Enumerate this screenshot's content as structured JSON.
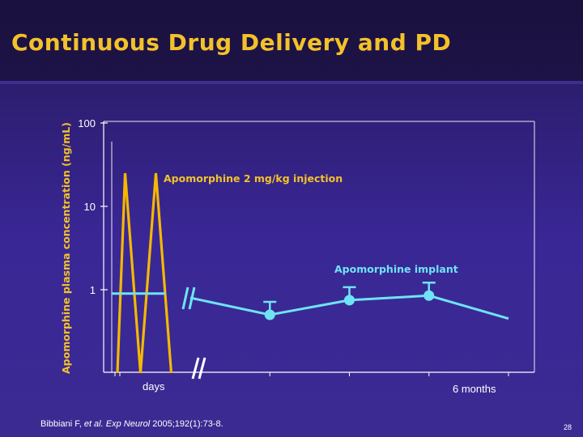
{
  "slide": {
    "title": "Continuous Drug Delivery and PD",
    "page_number": "28",
    "reference": {
      "author": "Bibbiani F,",
      "etal": "et al.",
      "journal": "Exp Neurol",
      "citation": "2005;192(1):73-8."
    }
  },
  "colors": {
    "background": "#3a2590",
    "title": "#f3c12a",
    "injection_line": "#f5b800",
    "implant_line": "#6fe3f5",
    "text": "#ffffff"
  },
  "chart_data": {
    "type": "line",
    "ylabel": "Apomorphine plasma concentration (ng/mL)",
    "yscale": "log",
    "ylim": [
      0.1,
      100
    ],
    "y_ticks": [
      {
        "value": 100,
        "label": "100"
      },
      {
        "value": 10,
        "label": "10"
      },
      {
        "value": 1,
        "label": "1"
      }
    ],
    "x_labels": {
      "short": "days",
      "long": "6 months"
    },
    "axis_break": true,
    "annotations": [
      {
        "text": "Apomorphine 2 mg/kg injection",
        "series": "injection"
      },
      {
        "text": "Apomorphine implant",
        "series": "implant"
      }
    ],
    "series": [
      {
        "name": "Apomorphine 2 mg/kg injection",
        "segment": "days",
        "points": [
          {
            "t": 0.0,
            "y": 0.1
          },
          {
            "t": 0.5,
            "y": 25
          },
          {
            "t": 1.5,
            "y": 0.1
          },
          {
            "t": 2.5,
            "y": 25
          },
          {
            "t": 3.5,
            "y": 0.1
          }
        ]
      },
      {
        "name": "Apomorphine implant",
        "segment_days": [
          {
            "t": 0.0,
            "y": 0.9
          },
          {
            "t": 3.5,
            "y": 0.9
          }
        ],
        "segment_months": [
          {
            "month": 0.0,
            "y": 0.8
          },
          {
            "month": 1.5,
            "y": 0.5,
            "error_bar": true
          },
          {
            "month": 3.0,
            "y": 0.75,
            "error_bar": true
          },
          {
            "month": 4.5,
            "y": 0.85,
            "error_bar": true
          },
          {
            "month": 6.0,
            "y": 0.45
          }
        ]
      }
    ]
  }
}
